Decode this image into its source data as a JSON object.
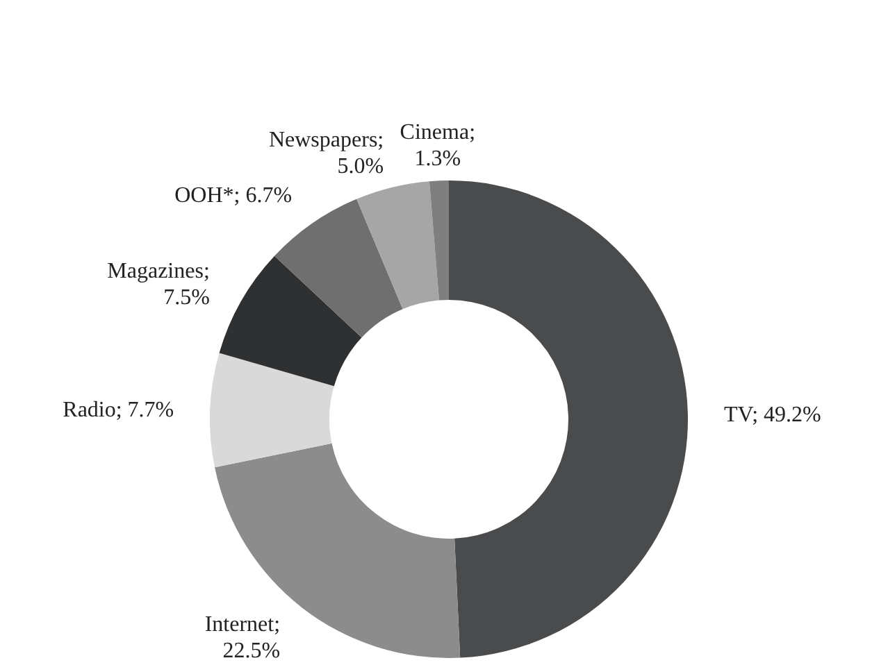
{
  "chart_data": {
    "type": "donut",
    "categories": [
      "TV",
      "Internet",
      "Radio",
      "Magazines",
      "OOH*",
      "Newspapers",
      "Cinema"
    ],
    "values": [
      49.2,
      22.5,
      7.7,
      7.5,
      6.7,
      5.0,
      1.3
    ],
    "value_labels": [
      "; 49.2%",
      "; 22.5%",
      "; 7.7%",
      "; 7.5%",
      "; 6.7%",
      "; 5.0%",
      "; 1.3%"
    ],
    "colors": [
      "#4a4b4d",
      "#8c8c8c",
      "#d9d9d9",
      "#2e3032",
      "#6f6f6f",
      "#a6a6a6",
      "#7f7f7f"
    ],
    "legend": false
  }
}
